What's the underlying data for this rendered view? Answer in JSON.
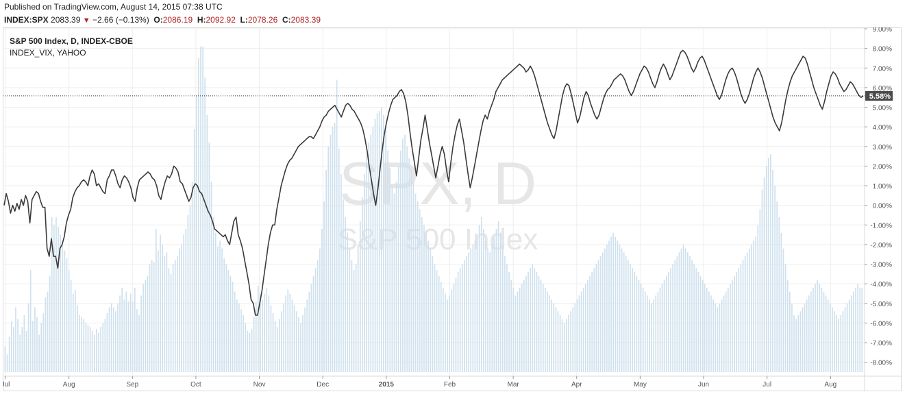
{
  "header": {
    "published": "Published on TradingView.com, August 14, 2015 07:38 UTC",
    "symbol": "INDEX:SPX",
    "last": "2083.39",
    "change": "−2.66 (−0.13%)",
    "o_label": "O:",
    "o_value": "2086.19",
    "h_label": "H:",
    "h_value": "2092.92",
    "l_label": "L:",
    "l_value": "2078.26",
    "c_label": "C:",
    "c_value": "2083.39"
  },
  "legend": {
    "main": "S&P 500 Index, D, INDEX-CBOE",
    "compare": "INDEX_VIX, YAHOO"
  },
  "watermark": {
    "symbol": "SPX, D",
    "name": "S&P 500 Index"
  },
  "colors": {
    "line": "#3a3a3a",
    "bars": "#cfe1ee",
    "grid": "#eeeeee",
    "label_bg": "#4a4a4a",
    "down": "#b22222"
  },
  "chart_data": {
    "type": "line",
    "y_unit": "%",
    "ylim": [
      -8.5,
      9.0
    ],
    "y_ticks": [
      "9.00%",
      "8.00%",
      "7.00%",
      "6.00%",
      "5.00%",
      "4.00%",
      "3.00%",
      "2.00%",
      "1.00%",
      "0.00%",
      "-1.00%",
      "-2.00%",
      "-3.00%",
      "-4.00%",
      "-5.00%",
      "-6.00%",
      "-7.00%",
      "-8.00%"
    ],
    "x_ticks": [
      "Jul",
      "Aug",
      "Sep",
      "Oct",
      "Nov",
      "Dec",
      "2015",
      "Feb",
      "Mar",
      "Apr",
      "May",
      "Jun",
      "Jul",
      "Aug"
    ],
    "last_value_label": "5.58%",
    "last_value": 5.58,
    "grid": true,
    "series": [
      {
        "name": "S&P 500 Index",
        "style": "line",
        "values": [
          0.0,
          0.6,
          0.2,
          -0.4,
          0.0,
          -0.3,
          0.1,
          -0.2,
          0.3,
          0.0,
          0.5,
          0.2,
          -0.9,
          0.3,
          0.5,
          0.7,
          0.6,
          0.2,
          -0.1,
          -0.1,
          -2.2,
          -2.6,
          -1.7,
          -2.6,
          -2.6,
          -3.2,
          -2.2,
          -2.0,
          -1.6,
          -0.9,
          -0.5,
          -0.2,
          0.4,
          0.7,
          0.9,
          1.0,
          1.2,
          1.3,
          1.2,
          1.0,
          1.5,
          1.8,
          1.6,
          1.0,
          1.1,
          0.9,
          0.7,
          0.6,
          1.3,
          1.5,
          1.8,
          1.8,
          1.5,
          1.1,
          0.9,
          1.3,
          1.5,
          1.4,
          1.2,
          0.9,
          0.4,
          0.2,
          0.9,
          1.3,
          1.4,
          1.5,
          1.6,
          1.7,
          1.6,
          1.4,
          1.3,
          1.0,
          0.5,
          0.3,
          0.8,
          1.2,
          1.5,
          1.4,
          1.6,
          2.0,
          1.9,
          1.7,
          1.2,
          1.1,
          0.8,
          0.5,
          0.2,
          0.4,
          0.9,
          1.1,
          1.0,
          0.7,
          0.6,
          0.3,
          0.0,
          -0.3,
          -0.5,
          -0.8,
          -1.2,
          -1.3,
          -1.4,
          -1.5,
          -1.6,
          -1.5,
          -1.8,
          -2.0,
          -1.4,
          -0.8,
          -0.6,
          -1.5,
          -1.8,
          -2.2,
          -2.8,
          -3.4,
          -4.0,
          -4.8,
          -5.0,
          -5.6,
          -5.6,
          -5.0,
          -4.4,
          -3.6,
          -2.8,
          -2.0,
          -1.4,
          -1.0,
          -1.0,
          -0.2,
          0.4,
          1.0,
          1.4,
          1.8,
          2.1,
          2.3,
          2.4,
          2.6,
          2.8,
          3.0,
          3.1,
          3.2,
          3.3,
          3.4,
          3.5,
          3.5,
          3.4,
          3.6,
          3.8,
          4.0,
          4.3,
          4.5,
          4.6,
          4.8,
          4.9,
          5.0,
          5.1,
          4.9,
          4.7,
          4.5,
          4.8,
          5.1,
          5.2,
          5.1,
          4.9,
          4.8,
          4.6,
          4.4,
          4.2,
          3.9,
          3.4,
          2.8,
          2.0,
          1.3,
          0.6,
          0.0,
          0.8,
          1.8,
          2.8,
          3.6,
          4.2,
          4.7,
          5.1,
          5.4,
          5.5,
          5.6,
          5.8,
          5.9,
          5.7,
          5.3,
          4.6,
          3.7,
          2.9,
          2.2,
          1.5,
          2.4,
          3.3,
          3.9,
          4.6,
          3.9,
          3.2,
          2.6,
          2.0,
          1.4,
          2.0,
          2.6,
          3.0,
          2.6,
          1.8,
          1.2,
          2.2,
          3.0,
          3.6,
          4.1,
          4.4,
          3.8,
          3.2,
          2.4,
          1.6,
          0.9,
          1.4,
          2.0,
          2.6,
          3.2,
          3.8,
          4.3,
          4.6,
          4.4,
          4.8,
          5.1,
          5.4,
          5.8,
          6.0,
          6.2,
          6.4,
          6.5,
          6.6,
          6.7,
          6.8,
          6.9,
          7.0,
          7.1,
          7.2,
          7.1,
          7.0,
          6.8,
          6.9,
          7.1,
          6.9,
          6.6,
          6.2,
          5.8,
          5.4,
          5.0,
          4.6,
          4.2,
          3.9,
          3.6,
          3.4,
          3.8,
          4.4,
          5.0,
          5.6,
          6.0,
          6.2,
          6.1,
          5.7,
          5.2,
          4.7,
          4.2,
          4.5,
          5.0,
          5.5,
          5.8,
          5.6,
          5.2,
          4.9,
          4.6,
          4.4,
          4.6,
          5.0,
          5.4,
          5.7,
          5.9,
          6.0,
          6.2,
          6.4,
          6.5,
          6.6,
          6.7,
          6.6,
          6.4,
          6.1,
          5.8,
          5.6,
          5.8,
          6.1,
          6.4,
          6.7,
          6.9,
          7.1,
          7.0,
          6.8,
          6.5,
          6.2,
          6.0,
          6.3,
          6.7,
          7.0,
          7.2,
          7.0,
          6.7,
          6.4,
          6.6,
          6.9,
          7.2,
          7.5,
          7.8,
          7.9,
          7.8,
          7.6,
          7.3,
          7.0,
          6.8,
          7.0,
          7.3,
          7.5,
          7.6,
          7.4,
          7.1,
          6.8,
          6.5,
          6.2,
          5.9,
          5.6,
          5.4,
          5.6,
          6.0,
          6.4,
          6.7,
          6.9,
          7.0,
          6.8,
          6.5,
          6.1,
          5.7,
          5.4,
          5.2,
          5.4,
          5.7,
          6.1,
          6.5,
          6.8,
          7.0,
          6.8,
          6.5,
          6.1,
          5.7,
          5.3,
          4.9,
          4.5,
          4.2,
          4.0,
          3.8,
          4.2,
          4.8,
          5.4,
          5.9,
          6.3,
          6.6,
          6.8,
          7.0,
          7.2,
          7.4,
          7.6,
          7.5,
          7.2,
          6.8,
          6.4,
          6.0,
          5.7,
          5.4,
          5.1,
          4.9,
          5.3,
          5.8,
          6.2,
          6.6,
          6.8,
          6.7,
          6.5,
          6.2,
          6.0,
          5.8,
          5.9,
          6.1,
          6.3,
          6.2,
          6.0,
          5.8,
          5.6,
          5.5,
          5.58
        ]
      },
      {
        "name": "INDEX_VIX",
        "style": "bar",
        "values": [
          -7.2,
          -7.6,
          -6.7,
          -5.9,
          -6.2,
          -5.2,
          -5.8,
          -6.6,
          -6.2,
          -5.6,
          -6.4,
          -5.0,
          -3.3,
          -5.9,
          -5.2,
          -5.7,
          -6.6,
          -6.0,
          -5.5,
          -4.7,
          -4.4,
          -3.6,
          -0.6,
          -1.0,
          -0.6,
          -1.1,
          -1.5,
          -2.0,
          -2.3,
          -2.7,
          -3.3,
          -3.8,
          -4.5,
          -4.3,
          -5.1,
          -5.6,
          -5.7,
          -5.8,
          -6.0,
          -6.1,
          -6.2,
          -6.4,
          -6.6,
          -6.3,
          -6.5,
          -6.2,
          -6.0,
          -5.8,
          -5.5,
          -5.2,
          -5.0,
          -5.2,
          -5.4,
          -5.0,
          -4.6,
          -4.2,
          -4.8,
          -4.4,
          -4.9,
          -4.5,
          -4.9,
          -4.2,
          -5.3,
          -5.6,
          -4.6,
          -4.0,
          -3.8,
          -3.6,
          -3.0,
          -2.8,
          -2.9,
          -1.2,
          -2.3,
          -1.5,
          -2.0,
          -2.6,
          -2.4,
          -3.2,
          -3.5,
          -3.0,
          -2.8,
          -2.6,
          -2.2,
          -2.0,
          -1.5,
          -1.2,
          -0.5,
          0.0,
          1.2,
          3.9,
          5.6,
          7.5,
          8.1,
          8.1,
          6.5,
          4.6,
          3.2,
          1.2,
          -0.6,
          -1.4,
          -2.1,
          -1.8,
          -2.2,
          -2.7,
          -3.0,
          -3.3,
          -3.6,
          -3.9,
          -4.4,
          -4.8,
          -5.0,
          -5.3,
          -5.6,
          -6.0,
          -6.4,
          -6.5,
          -6.3,
          -5.7,
          -4.9,
          -4.1,
          -4.5,
          -4.8,
          -4.5,
          -4.2,
          -4.6,
          -5.1,
          -5.5,
          -5.9,
          -6.2,
          -5.8,
          -5.4,
          -5.0,
          -4.6,
          -4.3,
          -4.5,
          -4.8,
          -5.1,
          -5.4,
          -5.7,
          -6.0,
          -5.6,
          -5.2,
          -4.8,
          -4.4,
          -4.0,
          -3.6,
          -3.2,
          -2.8,
          -2.2,
          -1.2,
          0.2,
          1.8,
          3.0,
          3.6,
          4.0,
          4.2,
          6.4,
          2.9,
          1.6,
          0.3,
          -0.6,
          -1.4,
          -2.2,
          -2.8,
          -3.3,
          -3.0,
          -2.0,
          -0.8,
          0.4,
          1.6,
          2.6,
          3.2,
          3.6,
          4.0,
          4.4,
          4.7,
          4.8,
          5.0,
          4.6,
          3.8,
          2.8,
          1.9,
          1.0,
          0.6,
          1.2,
          2.0,
          2.8,
          3.4,
          3.6,
          3.0,
          2.4,
          1.8,
          1.2,
          0.6,
          0.2,
          -0.2,
          -0.6,
          -1.0,
          -1.4,
          -1.8,
          -2.2,
          -2.6,
          -3.0,
          -3.3,
          -3.6,
          -3.9,
          -4.2,
          -4.5,
          -4.8,
          -4.6,
          -4.3,
          -4.0,
          -3.7,
          -3.4,
          -3.2,
          -3.0,
          -2.8,
          -2.6,
          -2.4,
          -2.2,
          -2.0,
          -1.8,
          -1.6,
          -1.0,
          -0.6,
          -1.2,
          -1.8,
          -2.2,
          -2.4,
          -2.0,
          -1.6,
          -1.2,
          -0.8,
          -1.4,
          -2.0,
          -2.6,
          -3.0,
          -3.4,
          -3.8,
          -4.2,
          -4.6,
          -4.4,
          -4.2,
          -4.0,
          -3.8,
          -3.6,
          -3.4,
          -3.2,
          -3.0,
          -3.2,
          -3.4,
          -3.6,
          -3.8,
          -4.0,
          -4.2,
          -4.4,
          -4.6,
          -4.8,
          -5.0,
          -5.2,
          -5.4,
          -5.6,
          -5.8,
          -6.0,
          -5.8,
          -5.6,
          -5.4,
          -5.2,
          -5.0,
          -4.8,
          -4.6,
          -4.4,
          -4.2,
          -4.0,
          -3.8,
          -3.6,
          -3.4,
          -3.2,
          -3.0,
          -2.8,
          -2.6,
          -2.4,
          -2.2,
          -2.0,
          -1.8,
          -1.6,
          -1.4,
          -1.6,
          -1.8,
          -2.0,
          -2.2,
          -2.4,
          -2.6,
          -2.8,
          -3.0,
          -3.2,
          -3.4,
          -3.6,
          -3.8,
          -4.0,
          -4.2,
          -4.4,
          -4.6,
          -4.8,
          -5.0,
          -4.8,
          -4.6,
          -4.4,
          -4.2,
          -4.0,
          -3.8,
          -3.6,
          -3.4,
          -3.2,
          -3.0,
          -2.8,
          -2.6,
          -2.4,
          -2.2,
          -2.0,
          -2.2,
          -2.4,
          -2.6,
          -2.8,
          -3.0,
          -3.2,
          -3.4,
          -3.6,
          -3.8,
          -4.0,
          -4.2,
          -4.4,
          -4.6,
          -4.8,
          -5.0,
          -5.2,
          -5.0,
          -4.8,
          -4.6,
          -4.4,
          -4.2,
          -4.0,
          -3.8,
          -3.6,
          -3.4,
          -3.2,
          -3.0,
          -2.8,
          -2.6,
          -2.4,
          -2.2,
          -2.0,
          -1.8,
          -1.6,
          -1.0,
          -0.2,
          0.8,
          1.4,
          2.0,
          2.4,
          2.6,
          1.8,
          1.0,
          0.2,
          -0.6,
          -1.4,
          -2.2,
          -3.0,
          -3.8,
          -4.4,
          -5.0,
          -5.6,
          -5.8,
          -5.6,
          -5.4,
          -5.2,
          -5.0,
          -4.8,
          -4.6,
          -4.4,
          -4.2,
          -4.0,
          -3.8,
          -4.0,
          -4.2,
          -4.4,
          -4.6,
          -4.8,
          -5.0,
          -5.2,
          -5.4,
          -5.6,
          -5.8,
          -5.6,
          -5.4,
          -5.2,
          -5.0,
          -4.8,
          -4.6,
          -4.4,
          -4.2,
          -4.0,
          -4.2,
          -4.2
        ]
      }
    ]
  }
}
